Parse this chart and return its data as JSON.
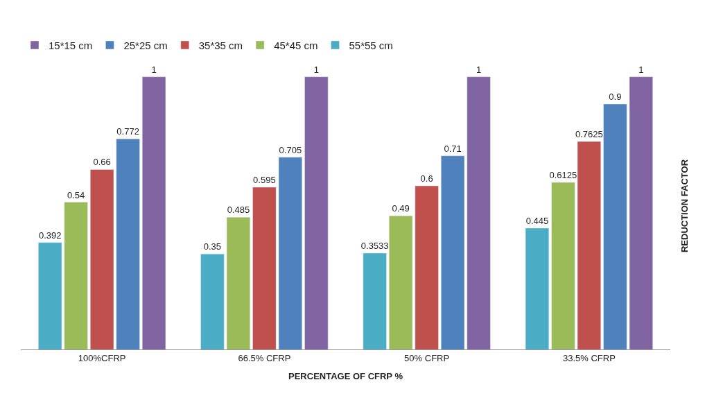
{
  "chart_data": {
    "type": "bar",
    "xlabel": "PERCENTAGE OF CFRP %",
    "ylabel": "REDUCTION FACTOR",
    "categories": [
      "100%CFRP",
      "66.5% CFRP",
      "50% CFRP",
      "33.5% CFRP"
    ],
    "series": [
      {
        "name": "55*55 cm",
        "color": "#4bacc6",
        "values": [
          0.392,
          0.35,
          0.3533,
          0.445
        ]
      },
      {
        "name": "45*45 cm",
        "color": "#9bbb59",
        "values": [
          0.54,
          0.485,
          0.49,
          0.6125
        ]
      },
      {
        "name": "35*35 cm",
        "color": "#c0504d",
        "values": [
          0.66,
          0.595,
          0.6,
          0.7625
        ]
      },
      {
        "name": "25*25 cm",
        "color": "#4f81bd",
        "values": [
          0.772,
          0.705,
          0.71,
          0.9
        ]
      },
      {
        "name": "15*15 cm",
        "color": "#8064a2",
        "values": [
          1,
          1,
          1,
          1
        ]
      }
    ],
    "data_labels": true,
    "legend": "top left"
  }
}
